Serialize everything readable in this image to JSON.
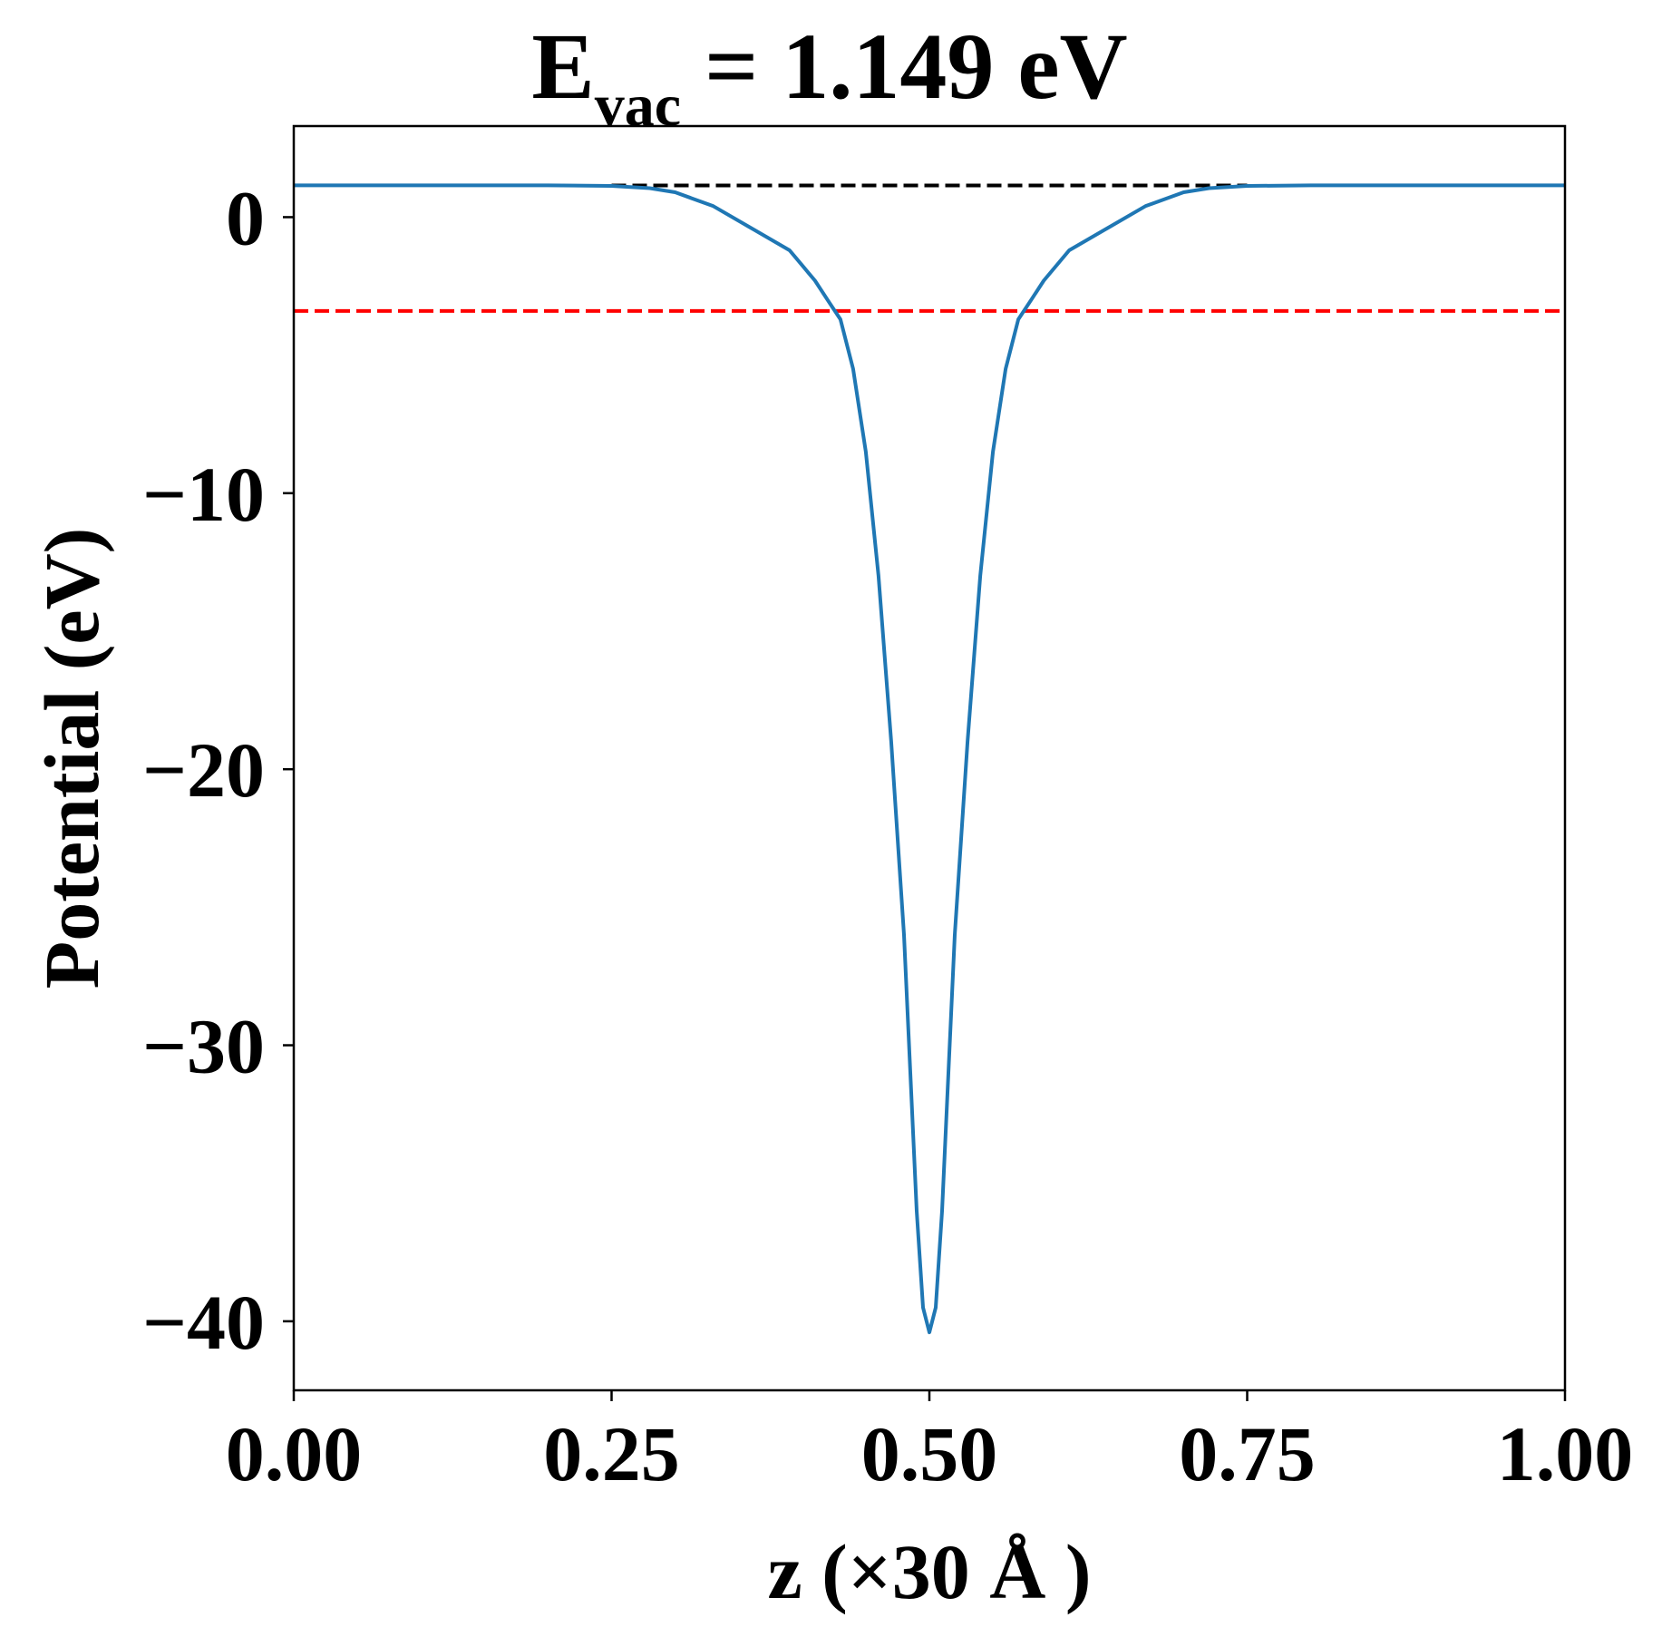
{
  "chart_data": {
    "type": "line",
    "title": {
      "main": "E",
      "subscript": "vac",
      "suffix": " = 1.149 eV"
    },
    "xlabel": "z (×30 Å )",
    "ylabel": "Potential (eV)",
    "xlim": [
      0.0,
      1.0
    ],
    "ylim": [
      -42.5,
      3.3
    ],
    "xticks": [
      0.0,
      0.25,
      0.5,
      0.75,
      1.0
    ],
    "xtick_labels": [
      "0.00",
      "0.25",
      "0.50",
      "0.75",
      "1.00"
    ],
    "yticks": [
      0,
      -10,
      -20,
      -30,
      -40
    ],
    "ytick_labels": [
      "0",
      "−10",
      "−20",
      "−30",
      "−40"
    ],
    "grid": false,
    "reference_lines": [
      {
        "y": 1.149,
        "color": "#000000",
        "style": "dashed",
        "x_range": [
          0.25,
          0.75
        ]
      },
      {
        "y": -3.4,
        "color": "#ff0000",
        "style": "dashed",
        "x_range": [
          0.0,
          1.0
        ]
      }
    ],
    "series": [
      {
        "color": "#1f77b4",
        "x": [
          0.0,
          0.05,
          0.1,
          0.15,
          0.2,
          0.25,
          0.28,
          0.3,
          0.33,
          0.36,
          0.39,
          0.41,
          0.42,
          0.43,
          0.44,
          0.45,
          0.46,
          0.47,
          0.48,
          0.485,
          0.49,
          0.495,
          0.5,
          0.505,
          0.51,
          0.515,
          0.52,
          0.53,
          0.54,
          0.55,
          0.56,
          0.57,
          0.58,
          0.59,
          0.61,
          0.64,
          0.67,
          0.7,
          0.72,
          0.75,
          0.8,
          0.85,
          0.9,
          0.95,
          1.0
        ],
        "y": [
          1.15,
          1.15,
          1.15,
          1.15,
          1.15,
          1.13,
          1.05,
          0.9,
          0.4,
          -0.4,
          -1.2,
          -2.3,
          -3.0,
          -3.7,
          -5.5,
          -8.5,
          -13.0,
          -19.0,
          -26.0,
          -31.0,
          -36.0,
          -39.5,
          -40.4,
          -39.5,
          -36.0,
          -31.0,
          -26.0,
          -19.0,
          -13.0,
          -8.5,
          -5.5,
          -3.7,
          -3.0,
          -2.3,
          -1.2,
          -0.4,
          0.4,
          0.9,
          1.05,
          1.13,
          1.15,
          1.15,
          1.15,
          1.15,
          1.15
        ]
      }
    ]
  }
}
